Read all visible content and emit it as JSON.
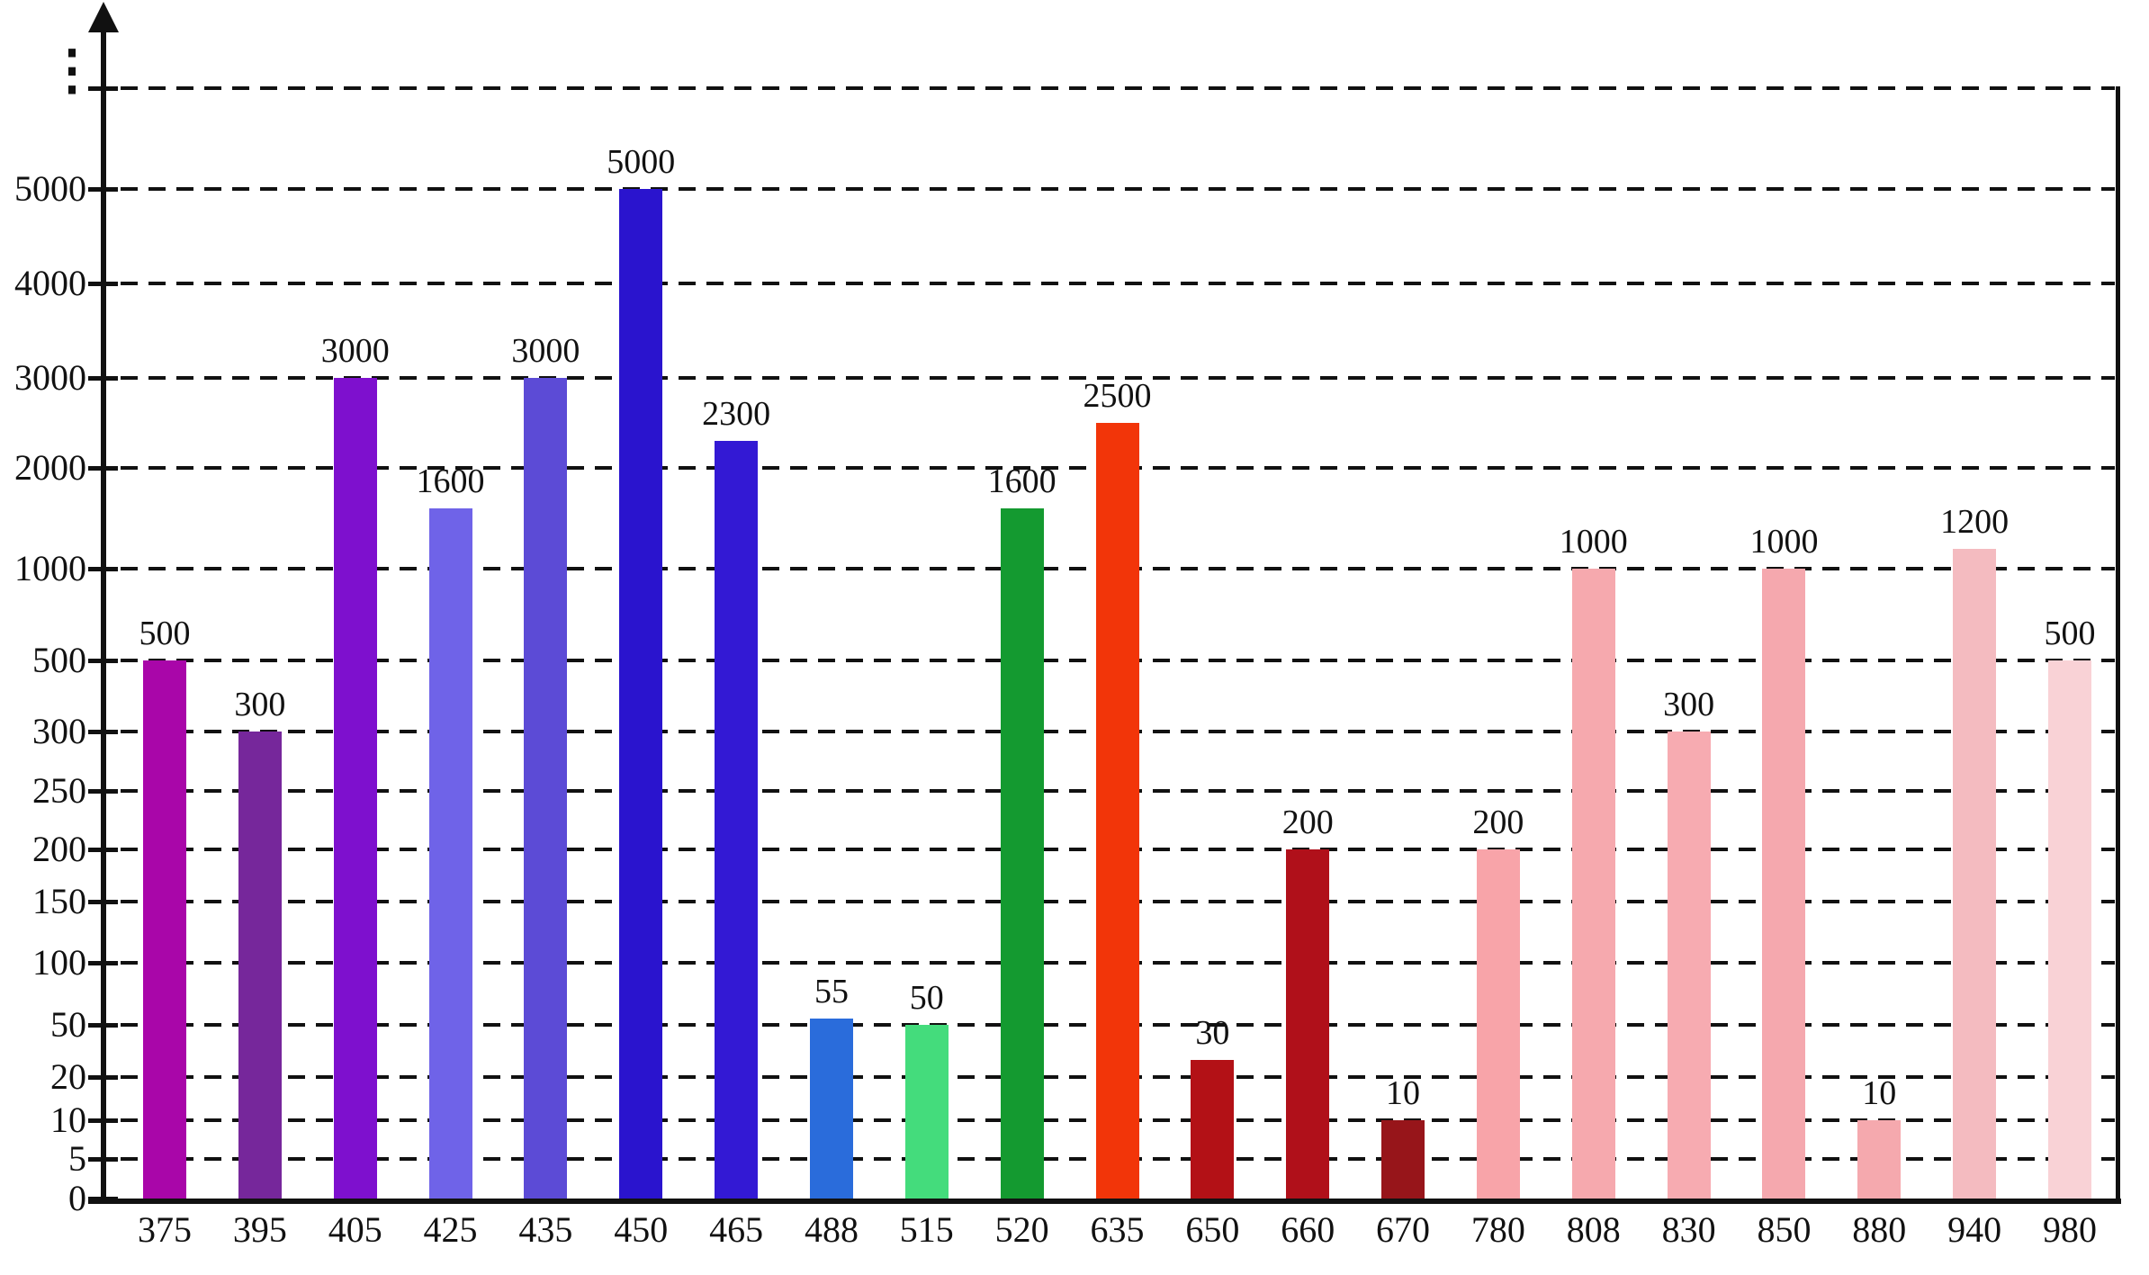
{
  "chart_data": {
    "type": "bar",
    "title": "",
    "xlabel": "",
    "ylabel": "",
    "legend": "none",
    "grid": "dashed horizontal gridlines at every y tick, plus one unlabeled gridline above 5000",
    "y_axis": {
      "scale": "non-linear (custom tick spacing)",
      "continuation_symbol": "⋮",
      "has_unlabeled_top_gridline": true,
      "arrow_at_top": true
    },
    "y_ticks": [
      {
        "label": "0",
        "value": 0
      },
      {
        "label": "5",
        "value": 5
      },
      {
        "label": "10",
        "value": 10
      },
      {
        "label": "20",
        "value": 20
      },
      {
        "label": "50",
        "value": 50
      },
      {
        "label": "100",
        "value": 100
      },
      {
        "label": "150",
        "value": 150
      },
      {
        "label": "200",
        "value": 200
      },
      {
        "label": "250",
        "value": 250
      },
      {
        "label": "300",
        "value": 300
      },
      {
        "label": "500",
        "value": 500
      },
      {
        "label": "1000",
        "value": 1000
      },
      {
        "label": "2000",
        "value": 2000
      },
      {
        "label": "3000",
        "value": 3000
      },
      {
        "label": "4000",
        "value": 4000
      },
      {
        "label": "5000",
        "value": 5000
      }
    ],
    "categories": [
      "375",
      "395",
      "405",
      "425",
      "435",
      "450",
      "465",
      "488",
      "515",
      "520",
      "635",
      "650",
      "660",
      "670",
      "780",
      "808",
      "830",
      "850",
      "880",
      "940",
      "980"
    ],
    "values": [
      500,
      300,
      3000,
      1600,
      3000,
      5000,
      2300,
      55,
      50,
      1600,
      2500,
      30,
      200,
      10,
      200,
      1000,
      300,
      1000,
      10,
      1200,
      500
    ],
    "bar_colors": [
      "#A906A9",
      "#76279B",
      "#7E10CE",
      "#6F63E8",
      "#5C4BD6",
      "#2A14CE",
      "#3319D4",
      "#2A6CDB",
      "#44DC7C",
      "#149A30",
      "#F23509",
      "#B31116",
      "#B0101A",
      "#97151A",
      "#F8A4A9",
      "#F6A9AE",
      "#F7ABB1",
      "#F5A8AE",
      "#F5A9AE",
      "#F4BBC0",
      "#F9D2D6"
    ],
    "value_label_color": "#111111",
    "axis_color": "#111111"
  }
}
